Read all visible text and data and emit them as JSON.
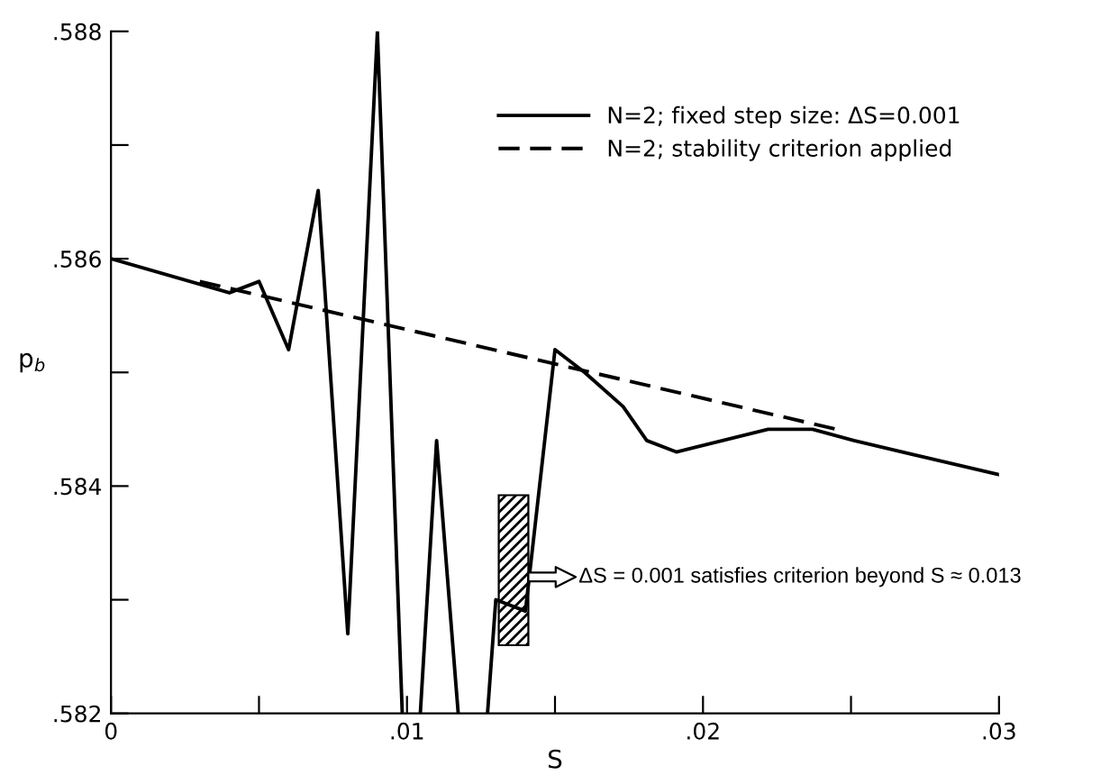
{
  "chart_data": {
    "type": "line",
    "xlabel": "S",
    "ylabel": "p$_{b}$",
    "xlim": [
      0,
      0.03
    ],
    "ylim": [
      0.582,
      0.588
    ],
    "xticks": [
      {
        "value": 0,
        "label": "0"
      },
      {
        "value": 0.005,
        "label": null
      },
      {
        "value": 0.01,
        "label": ".01"
      },
      {
        "value": 0.015,
        "label": null
      },
      {
        "value": 0.02,
        "label": ".02"
      },
      {
        "value": 0.025,
        "label": null
      },
      {
        "value": 0.03,
        "label": ".03"
      }
    ],
    "yticks": [
      {
        "value": 0.582,
        "label": ".582"
      },
      {
        "value": 0.583,
        "label": null
      },
      {
        "value": 0.584,
        "label": ".584"
      },
      {
        "value": 0.585,
        "label": null
      },
      {
        "value": 0.586,
        "label": ".586"
      },
      {
        "value": 0.587,
        "label": null
      },
      {
        "value": 0.588,
        "label": ".588"
      }
    ],
    "series": [
      {
        "name": "N=2; fixed step size: ΔS=0.001",
        "color": "#000000",
        "line_style": "solid",
        "x": [
          0,
          0.004,
          0.005,
          0.006,
          0.007,
          0.008,
          0.009,
          0.00984,
          0.01,
          0.01045,
          0.011,
          0.01173,
          0.012,
          0.01272,
          0.013,
          0.014,
          0.015,
          0.016,
          0.0173,
          0.0181,
          0.0191,
          0.0222,
          0.0237,
          0.0251,
          0.03
        ],
        "values": [
          0.586,
          0.5857,
          0.5858,
          0.5852,
          0.5866,
          0.5827,
          0.588,
          0.582,
          null,
          0.582,
          0.5844,
          0.582,
          null,
          0.582,
          0.583,
          0.5829,
          0.5852,
          0.585,
          0.5847,
          0.5844,
          0.5843,
          0.5845,
          0.5845,
          0.5844,
          0.5841
        ]
      },
      {
        "name": "N=2; stability criterion applied",
        "color": "#000000",
        "line_style": "dashed",
        "x": [
          0.003,
          0.0245
        ],
        "values": [
          0.5858,
          0.5845
        ]
      }
    ],
    "bands": [
      {
        "axis": "x",
        "from": 0.0131,
        "to": 0.0141,
        "label": null
      }
    ],
    "annotations": [
      {
        "text": "ΔS = 0.001 satisfies criterion beyond S ≈ 0.013",
        "x": 0.0141,
        "y": 0.5832
      }
    ],
    "legend": "top right",
    "grid": false
  }
}
